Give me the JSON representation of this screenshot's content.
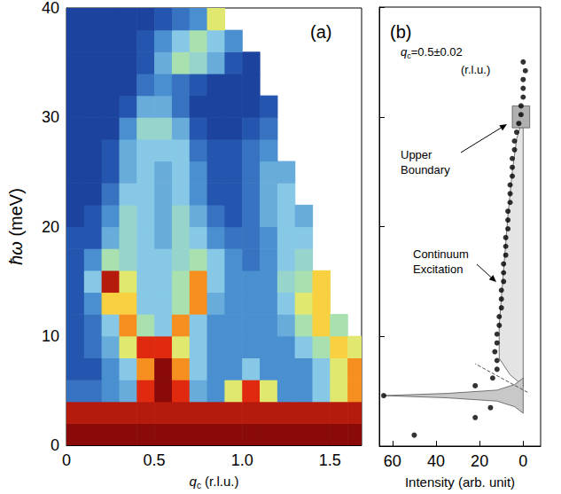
{
  "chart_data": [
    {
      "type": "heatmap",
      "panel_label": "(a)",
      "x_label": "qc (r.l.u.)",
      "y_label": "ħω (meV)",
      "xlim": [
        0,
        1.68
      ],
      "xticks": [
        0,
        0.5,
        {
          "value": 1,
          "label": "1.0"
        },
        1.5
      ],
      "ylim": [
        0,
        40
      ],
      "yticks": [
        0,
        10,
        20,
        30,
        40
      ],
      "grid": false,
      "x_bins": [
        0,
        0.1,
        0.2,
        0.3,
        0.4,
        0.5,
        0.6,
        0.7,
        0.8,
        0.9,
        1.0,
        1.1,
        1.2,
        1.3,
        1.4,
        1.5,
        1.6,
        1.7
      ],
      "y_bins": [
        0,
        2,
        4,
        6,
        8,
        10,
        12,
        14,
        16,
        18,
        20,
        22,
        24,
        26,
        28,
        30,
        32,
        34,
        36,
        38,
        40
      ],
      "cell_range": [
        0,
        10
      ],
      "cells": [
        [
          10,
          10,
          10,
          10,
          10,
          10,
          10,
          10,
          10,
          10,
          10,
          10,
          10,
          10,
          10,
          10,
          10
        ],
        [
          9.5,
          9.5,
          9.5,
          9.5,
          9.5,
          9.5,
          9.5,
          9.5,
          9.5,
          9.5,
          9.5,
          9.5,
          9.5,
          9.5,
          9.5,
          9.5,
          9.5
        ],
        [
          2.5,
          2.5,
          3,
          3.5,
          9,
          10,
          9,
          3.5,
          3,
          6,
          9,
          6,
          3,
          3,
          4,
          6,
          8
        ],
        [
          2,
          2,
          3,
          4,
          8,
          10,
          8,
          4,
          3,
          3,
          4,
          3,
          3,
          3,
          4,
          6,
          8
        ],
        [
          2,
          2.5,
          3.5,
          6,
          9,
          9,
          6,
          4,
          3,
          3,
          3,
          3,
          3,
          4,
          5,
          7,
          6
        ],
        [
          2,
          2.5,
          4,
          8,
          5,
          4,
          8,
          4,
          3,
          3,
          3,
          3,
          3.5,
          5,
          7,
          5,
          null
        ],
        [
          2,
          3,
          7,
          7,
          4,
          4,
          5,
          8,
          3.5,
          3,
          3,
          3,
          4,
          6,
          7,
          null,
          null
        ],
        [
          2,
          4,
          9.5,
          6,
          4,
          4,
          5,
          8,
          4,
          3,
          3,
          3,
          4.5,
          5,
          7,
          null,
          null
        ],
        [
          2,
          3,
          5,
          4.5,
          4,
          4,
          4.5,
          5,
          4,
          3,
          2.5,
          3,
          4,
          4.5,
          null,
          null,
          null
        ],
        [
          2,
          2,
          3.5,
          4.5,
          4,
          3.5,
          4.5,
          4,
          3,
          2.5,
          2.5,
          3,
          4,
          4,
          null,
          null,
          null
        ],
        [
          1.5,
          2,
          3,
          4.5,
          4,
          3.5,
          4.5,
          3.5,
          2.5,
          2,
          2.5,
          3.5,
          4,
          3.5,
          null,
          null,
          null
        ],
        [
          1.5,
          1.5,
          2.5,
          4,
          4,
          3.5,
          4,
          3,
          2,
          2,
          2.5,
          3.5,
          4,
          null,
          null,
          null,
          null
        ],
        [
          1.5,
          1.5,
          2,
          3.5,
          4,
          3.5,
          4,
          3,
          2,
          2,
          2.5,
          3.5,
          3.5,
          null,
          null,
          null,
          null
        ],
        [
          1.5,
          1.5,
          2,
          3.5,
          4,
          4,
          4,
          2.5,
          2,
          2,
          2.5,
          3,
          null,
          null,
          null,
          null,
          null
        ],
        [
          1.5,
          1.5,
          1.5,
          3,
          4.5,
          4.5,
          3.5,
          2,
          1.5,
          1.5,
          2,
          2.5,
          null,
          null,
          null,
          null,
          null
        ],
        [
          1.5,
          1.5,
          1.5,
          2,
          3.5,
          3.5,
          2.5,
          1.5,
          1.5,
          1.5,
          1.5,
          2,
          null,
          null,
          null,
          null,
          null
        ],
        [
          1.5,
          1.5,
          1.5,
          1.5,
          2.5,
          3,
          2.5,
          2,
          1.5,
          1.5,
          1.5,
          null,
          null,
          null,
          null,
          null,
          null
        ],
        [
          1.5,
          1.5,
          1.5,
          1.5,
          2,
          3.5,
          5,
          4.5,
          3.5,
          2,
          1.5,
          null,
          null,
          null,
          null,
          null,
          null
        ],
        [
          1.5,
          1.5,
          1.5,
          1.5,
          2,
          3,
          4,
          5,
          4,
          3,
          null,
          null,
          null,
          null,
          null,
          null,
          null
        ],
        [
          1.5,
          1.5,
          1.5,
          1.5,
          1.5,
          2,
          2.5,
          3,
          6,
          null,
          null,
          null,
          null,
          null,
          null,
          null,
          null
        ]
      ]
    },
    {
      "type": "scatter",
      "panel_label": "(b)",
      "x_label": "Intensity (arb. unit)",
      "xlim": [
        66,
        -8
      ],
      "xticks": [
        0,
        20,
        40,
        60
      ],
      "ylim": [
        0,
        40
      ],
      "yticks": [
        0,
        10,
        20,
        30,
        40
      ],
      "grid": false,
      "tick_labels": "x",
      "annotations": [
        {
          "text": "qc=0.5±0.02"
        },
        {
          "text": "(r.l.u.)"
        },
        {
          "text": "Upper Boundary"
        },
        {
          "text": "Continuum Excitation"
        }
      ],
      "series": [
        {
          "type": "area",
          "color": "#e4e4e4",
          "values": [
            [
              0,
              5.5
            ],
            [
              6,
              6.5
            ],
            [
              11,
              8
            ],
            [
              11,
              11
            ],
            [
              9,
              16
            ],
            [
              7,
              21
            ],
            [
              5,
              25
            ],
            [
              3,
              28
            ],
            [
              0,
              30
            ]
          ]
        },
        {
          "type": "area",
          "color": "#b0b0b0",
          "values": [
            [
              5,
              29
            ],
            [
              -3,
              29
            ],
            [
              -3,
              31
            ],
            [
              5,
              31
            ]
          ]
        },
        {
          "type": "area",
          "color": "#c8c8c8",
          "values": [
            [
              0,
              3.0
            ],
            [
              4,
              3.6
            ],
            [
              12,
              4.1
            ],
            [
              35,
              4.4
            ],
            [
              64,
              4.6
            ],
            [
              35,
              4.8
            ],
            [
              12,
              5.1
            ],
            [
              4,
              5.6
            ],
            [
              0,
              6.2
            ]
          ]
        },
        {
          "type": "line",
          "color": "#555555",
          "line_style": "dashed",
          "values": [
            [
              -2,
              4.9
            ],
            [
              22,
              7.5
            ]
          ]
        },
        {
          "type": "scatter",
          "color": "#000000",
          "marker": "circle",
          "values": [
            [
              50,
              1.0
            ],
            [
              22,
              2.6
            ],
            [
              15,
              3.5
            ],
            [
              64,
              4.6
            ],
            [
              22,
              5.5
            ],
            [
              14,
              6.2
            ],
            [
              12,
              7.0
            ],
            [
              12,
              7.8
            ],
            [
              13,
              8.6
            ],
            [
              12,
              9.4
            ],
            [
              12,
              10.2
            ],
            [
              11,
              11.0
            ],
            [
              11,
              11.8
            ],
            [
              10,
              12.6
            ],
            [
              10,
              13.4
            ],
            [
              10,
              14.2
            ],
            [
              9,
              15.0
            ],
            [
              9,
              15.8
            ],
            [
              9,
              16.6
            ],
            [
              8,
              17.4
            ],
            [
              8,
              18.2
            ],
            [
              8,
              19.0
            ],
            [
              7,
              19.8
            ],
            [
              7,
              20.6
            ],
            [
              7,
              21.4
            ],
            [
              6,
              22.2
            ],
            [
              6,
              23.0
            ],
            [
              6,
              23.8
            ],
            [
              5,
              24.6
            ],
            [
              5,
              25.4
            ],
            [
              5,
              26.2
            ],
            [
              4,
              27.0
            ],
            [
              4,
              27.8
            ],
            [
              3,
              28.6
            ],
            [
              2,
              29.4
            ],
            [
              1,
              30.2
            ],
            [
              1,
              31.0
            ],
            [
              0,
              31.8
            ],
            [
              0,
              32.6
            ],
            [
              0,
              33.4
            ],
            [
              -1,
              34.2
            ],
            [
              0,
              35.0
            ]
          ]
        }
      ]
    }
  ]
}
